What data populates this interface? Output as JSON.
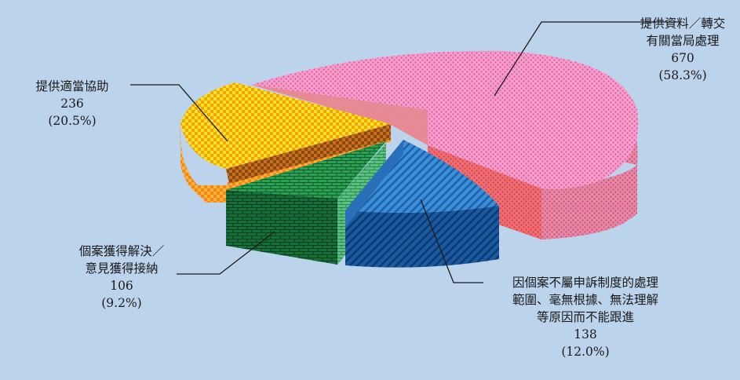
{
  "chart_data": {
    "type": "pie",
    "style": "3d-exploded",
    "slices": [
      {
        "label_lines": [
          "提供資料／轉交",
          "有關當局處理"
        ],
        "value": "670",
        "percent": "(58.3%)",
        "number": 670,
        "share": 58.3,
        "color": "#f08cc0",
        "pattern": "dotted"
      },
      {
        "label_lines": [
          "因個案不屬申訴制度的處理",
          "範圍、毫無根據、無法理解",
          "等原因而不能跟進"
        ],
        "value": "138",
        "percent": "(12.0%)",
        "number": 138,
        "share": 12.0,
        "color": "#2f80c8",
        "pattern": "diagonal-stripes"
      },
      {
        "label_lines": [
          "個案獲得解決／",
          "意見獲得接納"
        ],
        "value": "106",
        "percent": "(9.2%)",
        "number": 106,
        "share": 9.2,
        "color": "#1f8c45",
        "pattern": "brick"
      },
      {
        "label_lines": [
          "提供適當協助"
        ],
        "value": "236",
        "percent": "(20.5%)",
        "number": 236,
        "share": 20.5,
        "color": "#ffd21a",
        "pattern": "checker"
      }
    ]
  }
}
